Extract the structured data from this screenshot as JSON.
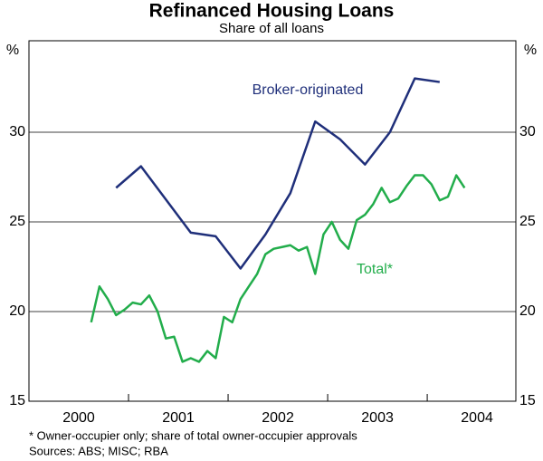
{
  "chart_data": {
    "type": "line",
    "title": "Refinanced Housing Loans",
    "subtitle": "Share of all loans",
    "y_unit_label": "%",
    "footnotes": [
      "* Owner-occupier only; share of total owner-occupier approvals",
      "Sources: ABS; MISC; RBA"
    ],
    "xlim": [
      2000,
      2004.89
    ],
    "xticks": [
      {
        "value": 2000.5,
        "label": "2000"
      },
      {
        "value": 2001.5,
        "label": "2001"
      },
      {
        "value": 2002.5,
        "label": "2002"
      },
      {
        "value": 2003.5,
        "label": "2003"
      },
      {
        "value": 2004.5,
        "label": "2004"
      }
    ],
    "xminor_ticks": [
      2001,
      2002,
      2003,
      2004
    ],
    "ylim": [
      15,
      35
    ],
    "yticks": [
      15,
      20,
      25,
      30
    ],
    "grid": true,
    "series": [
      {
        "name": "Broker-originated",
        "color": "#1f2f7a",
        "x": [
          2000.875,
          2001.125,
          2001.625,
          2001.875,
          2002.125,
          2002.375,
          2002.625,
          2002.875,
          2003.125,
          2003.375,
          2003.625,
          2003.875,
          2004.125
        ],
        "values": [
          26.9,
          28.1,
          24.4,
          24.2,
          22.4,
          24.3,
          26.6,
          30.6,
          29.6,
          28.2,
          30.0,
          33.0,
          32.8
        ]
      },
      {
        "name": "Total*",
        "color": "#22ad4b",
        "x": [
          2000.625,
          2000.708,
          2000.792,
          2000.875,
          2000.958,
          2001.042,
          2001.125,
          2001.208,
          2001.292,
          2001.375,
          2001.458,
          2001.542,
          2001.625,
          2001.708,
          2001.792,
          2001.875,
          2001.958,
          2002.042,
          2002.125,
          2002.208,
          2002.292,
          2002.375,
          2002.458,
          2002.542,
          2002.625,
          2002.708,
          2002.792,
          2002.875,
          2002.958,
          2003.042,
          2003.125,
          2003.208,
          2003.292,
          2003.375,
          2003.458,
          2003.542,
          2003.625,
          2003.708,
          2003.792,
          2003.875,
          2003.958,
          2004.042,
          2004.125,
          2004.208,
          2004.292,
          2004.375
        ],
        "values": [
          19.4,
          21.4,
          20.7,
          19.8,
          20.1,
          20.5,
          20.4,
          20.9,
          20.0,
          18.5,
          18.6,
          17.2,
          17.4,
          17.2,
          17.8,
          17.4,
          19.7,
          19.4,
          20.7,
          21.4,
          22.1,
          23.2,
          23.5,
          23.6,
          23.7,
          23.4,
          23.6,
          22.1,
          24.3,
          25.0,
          24.0,
          23.5,
          25.1,
          25.4,
          26.0,
          26.9,
          26.1,
          26.3,
          27.0,
          27.6,
          27.6,
          27.1,
          26.2,
          26.4,
          27.6,
          26.9
        ]
      }
    ]
  }
}
